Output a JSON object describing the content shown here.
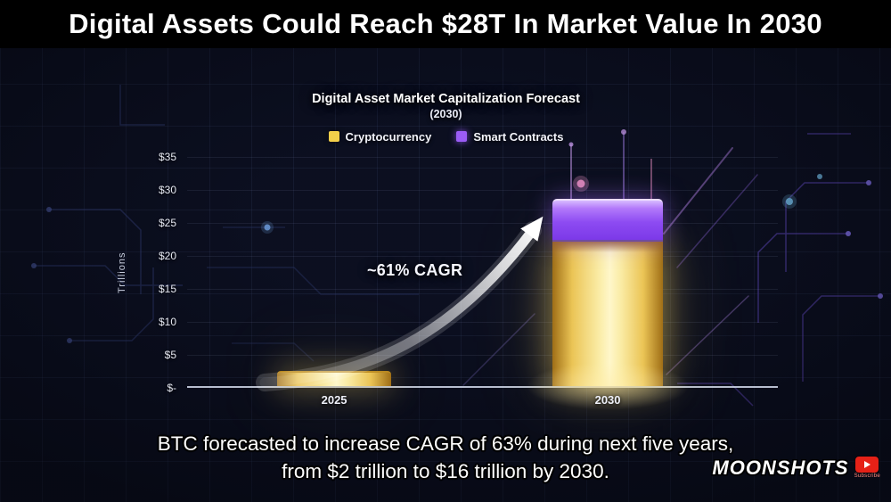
{
  "header": {
    "title": "Digital Assets Could Reach $28T In Market Value In 2030"
  },
  "chart_data": {
    "type": "bar",
    "stacked": true,
    "title": "Digital Asset Market Capitalization Forecast",
    "subtitle": "(2030)",
    "categories": [
      "2025",
      "2030"
    ],
    "series": [
      {
        "name": "Cryptocurrency",
        "color": "#f2cf4a",
        "values": [
          2,
          22
        ]
      },
      {
        "name": "Smart Contracts",
        "color": "#9b5cf6",
        "values": [
          0,
          6
        ]
      }
    ],
    "ylabel": "Trillions",
    "ytick_labels": [
      "$-",
      "$5",
      "$10",
      "$15",
      "$20",
      "$25",
      "$30",
      "$35"
    ],
    "ylim": [
      0,
      35
    ],
    "annotation": "~61% CAGR",
    "legend_position": "top",
    "grid": "faint horizontal",
    "background_color": "#0a0d1c"
  },
  "caption": {
    "line1": "BTC forecasted to increase CAGR of 63% during next five years,",
    "line2": "from $2 trillion to $16 trillion by 2030."
  },
  "branding": {
    "channel": "MOONSHOTS",
    "subscribe_label": "Subscribe"
  }
}
